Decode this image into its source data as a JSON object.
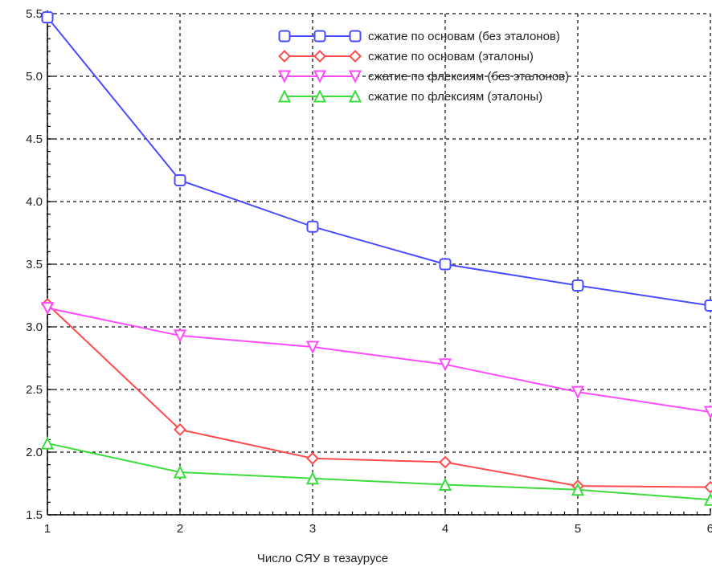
{
  "chart_data": {
    "type": "line",
    "title": "",
    "xlabel": "Число СЯУ в тезаурусе",
    "ylabel": "",
    "xlim": [
      1,
      6
    ],
    "ylim": [
      1.5,
      5.5
    ],
    "x": [
      1,
      2,
      3,
      4,
      5,
      6
    ],
    "x_ticks": [
      "1",
      "2",
      "3",
      "4",
      "5",
      "6"
    ],
    "y_ticks": [
      "1.5",
      "2.0",
      "2.5",
      "3.0",
      "3.5",
      "4.0",
      "4.5",
      "5.0",
      "5.5"
    ],
    "grid": true,
    "legend_position": "top-right",
    "series": [
      {
        "name": "сжатие по основам (без эталонов)",
        "color": "#4b4bff",
        "marker": "square",
        "values": [
          5.47,
          4.17,
          3.8,
          3.5,
          3.33,
          3.17
        ]
      },
      {
        "name": "сжатие по основам (эталоны)",
        "color": "#ff4b4b",
        "marker": "diamond",
        "values": [
          3.18,
          2.18,
          1.95,
          1.92,
          1.73,
          1.72
        ]
      },
      {
        "name": "сжатие по флексиям (без эталонов)",
        "color": "#ff4bff",
        "marker": "triangle-down",
        "values": [
          3.15,
          2.93,
          2.84,
          2.7,
          2.48,
          2.32
        ]
      },
      {
        "name": "сжатие по флексиям (эталоны)",
        "color": "#3cdc3c",
        "marker": "triangle-up",
        "values": [
          2.07,
          1.84,
          1.79,
          1.74,
          1.7,
          1.62
        ]
      }
    ]
  }
}
